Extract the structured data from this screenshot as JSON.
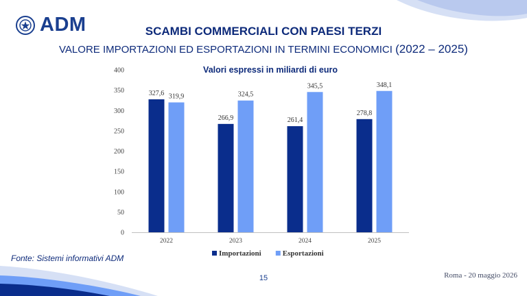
{
  "header": {
    "logo_text": "ADM",
    "title": "SCAMBI COMMERCIALI CON PAESI TERZI",
    "subtitle_main": "VALORE IMPORTAZIONI ED ESPORTAZIONI IN TERMINI ECONOMICI ",
    "subtitle_years": "(2022 – 2025)"
  },
  "colors": {
    "import": "#0a2d8c",
    "export": "#6f9ef7",
    "brand": "#1a3f8f"
  },
  "chart_data": {
    "type": "bar",
    "title": "Valori espressi in miliardi di euro",
    "categories": [
      "2022",
      "2023",
      "2024",
      "2025"
    ],
    "series": [
      {
        "name": "Importazioni",
        "values": [
          327.6,
          266.9,
          261.4,
          278.8
        ],
        "labels": [
          "327,6",
          "266,9",
          "261,4",
          "278,8"
        ]
      },
      {
        "name": "Esportazioni",
        "values": [
          319.9,
          324.5,
          345.5,
          348.1
        ],
        "labels": [
          "319,9",
          "324,5",
          "345,5",
          "348,1"
        ]
      }
    ],
    "ylim": [
      0,
      400
    ],
    "yticks": [
      "0",
      "50",
      "100",
      "150",
      "200",
      "250",
      "300",
      "350",
      "400"
    ],
    "legend": "bottom",
    "grid": false
  },
  "footer": {
    "source": "Fonte: Sistemi informativi ADM",
    "page_number": "15",
    "date_place": "Roma - 20 maggio 2026"
  }
}
